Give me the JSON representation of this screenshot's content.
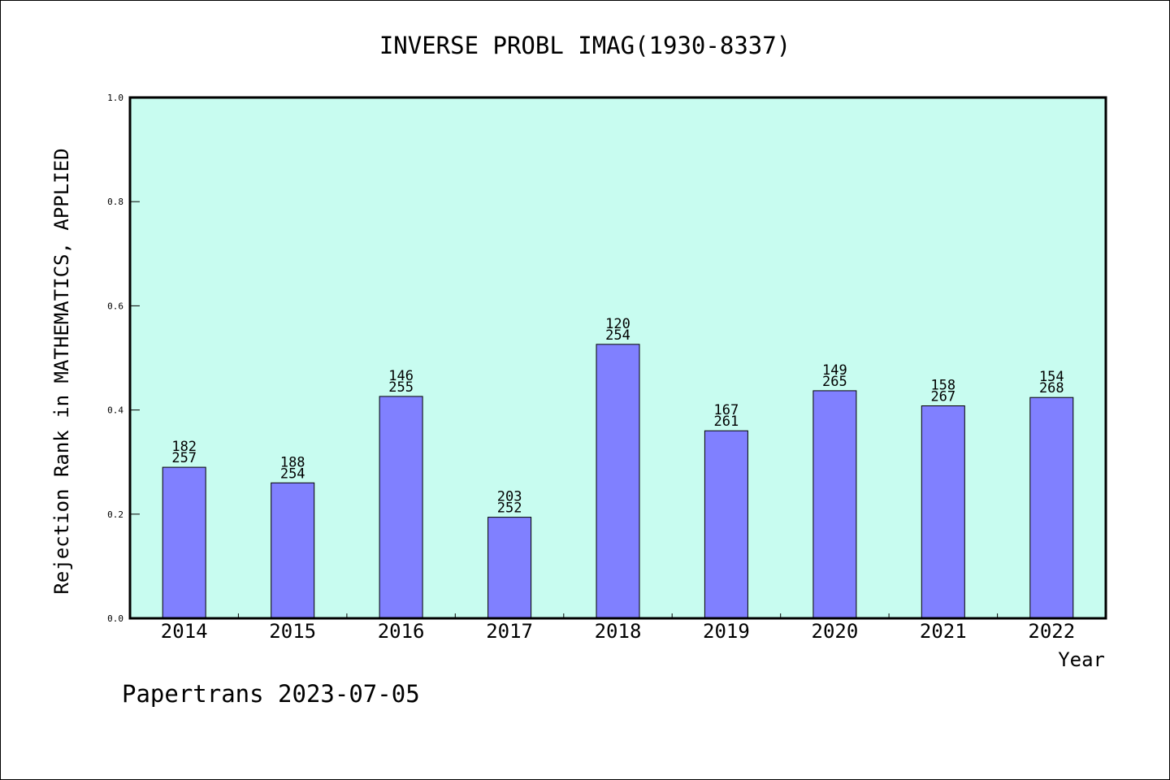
{
  "chart_data": {
    "type": "bar",
    "title": "INVERSE PROBL IMAG(1930-8337)",
    "xlabel": "Year",
    "ylabel": "Rejection Rank in MATHEMATICS, APPLIED",
    "ylim": [
      0,
      1.0
    ],
    "yticks": [
      "0.0",
      "0.2",
      "0.4",
      "0.6",
      "0.8",
      "1.0"
    ],
    "categories": [
      "2014",
      "2015",
      "2016",
      "2017",
      "2018",
      "2019",
      "2020",
      "2021",
      "2022"
    ],
    "values": [
      0.29,
      0.26,
      0.426,
      0.194,
      0.526,
      0.36,
      0.437,
      0.408,
      0.424
    ],
    "labels_rank": [
      "182",
      "188",
      "146",
      "203",
      "120",
      "167",
      "149",
      "158",
      "154"
    ],
    "labels_total": [
      "257",
      "254",
      "255",
      "252",
      "254",
      "261",
      "265",
      "267",
      "268"
    ],
    "grid": false,
    "legend": "none",
    "colors": {
      "plot_bg": "#c8fcf0",
      "bar": "#8080ff",
      "axis": "#000000"
    }
  },
  "footer": "Papertrans 2023-07-05"
}
